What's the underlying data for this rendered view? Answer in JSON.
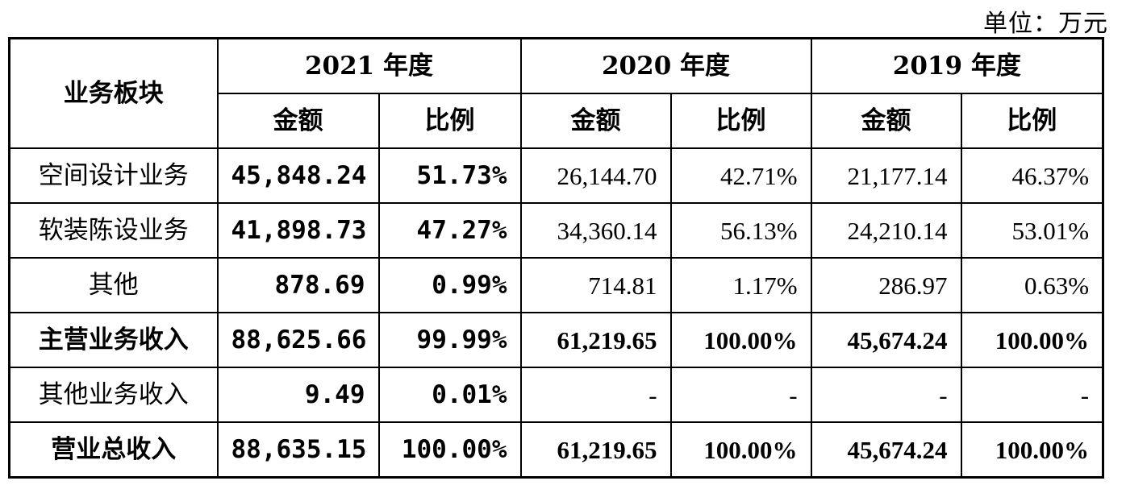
{
  "unit_label": "单位：万元",
  "header": {
    "segment": "业务板块",
    "years": [
      "2021 年度",
      "2020 年度",
      "2019 年度"
    ],
    "amount": "金额",
    "ratio": "比例"
  },
  "rows": [
    {
      "name": "空间设计业务",
      "bold": false,
      "cells": [
        "45,848.24",
        "51.73%",
        "26,144.70",
        "42.71%",
        "21,177.14",
        "46.37%"
      ]
    },
    {
      "name": "软装陈设业务",
      "bold": false,
      "cells": [
        "41,898.73",
        "47.27%",
        "34,360.14",
        "56.13%",
        "24,210.14",
        "53.01%"
      ]
    },
    {
      "name": "其他",
      "bold": false,
      "cells": [
        "878.69",
        "0.99%",
        "714.81",
        "1.17%",
        "286.97",
        "0.63%"
      ]
    },
    {
      "name": "主营业务收入",
      "bold": true,
      "cells": [
        "88,625.66",
        "99.99%",
        "61,219.65",
        "100.00%",
        "45,674.24",
        "100.00%"
      ]
    },
    {
      "name": "其他业务收入",
      "bold": false,
      "cells": [
        "9.49",
        "0.01%",
        "-",
        "-",
        "-",
        "-"
      ]
    },
    {
      "name": "营业总收入",
      "bold": true,
      "cells": [
        "88,635.15",
        "100.00%",
        "61,219.65",
        "100.00%",
        "45,674.24",
        "100.00%"
      ]
    }
  ]
}
